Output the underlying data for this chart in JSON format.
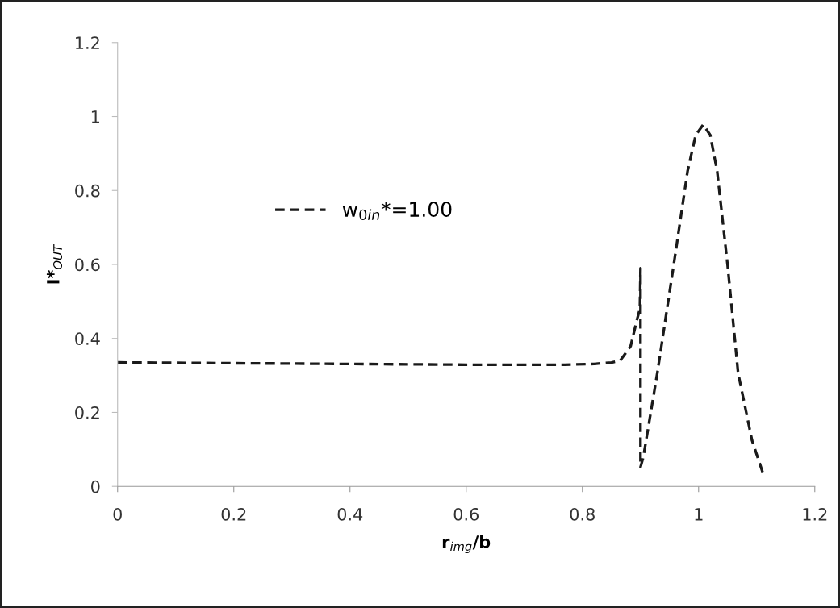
{
  "chart_data": {
    "type": "line",
    "xlabel": "r$_{img}$/b",
    "ylabel": "I*$_{OUT}$",
    "xlim": [
      0,
      1.2
    ],
    "xticks": [
      0,
      0.2,
      0.4,
      0.6,
      0.8,
      1,
      1.2
    ],
    "ylim": [
      0,
      1.2
    ],
    "yticks": [
      0,
      0.2,
      0.4,
      0.6,
      0.8,
      1,
      1.2
    ],
    "grid": false,
    "legend": "left",
    "line_style": "dashed",
    "marker": "none",
    "series": [
      {
        "name": "w$_{0in}$*=1.00",
        "color": "#1a1a1a",
        "x": [
          0,
          0.1,
          0.2,
          0.3,
          0.4,
          0.5,
          0.6,
          0.7,
          0.77,
          0.82,
          0.85,
          0.865,
          0.883,
          0.894,
          0.899,
          0.9,
          0.9,
          0.905,
          0.929,
          0.957,
          0.981,
          0.995,
          1.008,
          1.02,
          1.032,
          1.05,
          1.068,
          1.092,
          1.112
        ],
        "values": [
          0.335,
          0.334,
          0.333,
          0.332,
          0.331,
          0.33,
          0.329,
          0.329,
          0.329,
          0.331,
          0.335,
          0.34,
          0.379,
          0.451,
          0.48,
          0.59,
          0.052,
          0.08,
          0.307,
          0.597,
          0.852,
          0.95,
          0.978,
          0.95,
          0.852,
          0.597,
          0.307,
          0.124,
          0.03
        ]
      }
    ]
  }
}
